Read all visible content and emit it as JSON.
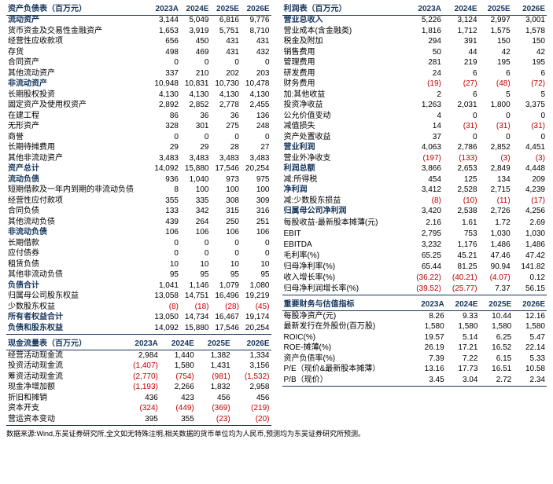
{
  "years": [
    "2023A",
    "2024E",
    "2025E",
    "2026E"
  ],
  "footnote": "数据来源:Wind,东吴证券研究所,全文如无特殊注明,相关数据的货币单位均为人民币,预测均为东吴证券研究所预测。",
  "left": {
    "header": "资产负债表（百万元）",
    "rows": [
      {
        "s": 1,
        "l": "流动资产",
        "v": [
          "3,144",
          "5,049",
          "6,816",
          "9,776"
        ]
      },
      {
        "l": "货币资金及交易性金融资产",
        "v": [
          "1,653",
          "3,919",
          "5,751",
          "8,710"
        ]
      },
      {
        "l": "经营性应收款项",
        "v": [
          "656",
          "450",
          "431",
          "431"
        ]
      },
      {
        "l": "存货",
        "v": [
          "498",
          "469",
          "431",
          "432"
        ]
      },
      {
        "l": "合同资产",
        "v": [
          "0",
          "0",
          "0",
          "0"
        ]
      },
      {
        "l": "其他流动资产",
        "v": [
          "337",
          "210",
          "202",
          "203"
        ]
      },
      {
        "s": 1,
        "l": "非流动资产",
        "v": [
          "10,948",
          "10,831",
          "10,730",
          "10,478"
        ]
      },
      {
        "l": "长期股权投资",
        "v": [
          "4,130",
          "4,130",
          "4,130",
          "4,130"
        ]
      },
      {
        "l": "固定资产及使用权资产",
        "v": [
          "2,892",
          "2,852",
          "2,778",
          "2,455"
        ]
      },
      {
        "l": "在建工程",
        "v": [
          "86",
          "36",
          "36",
          "136"
        ]
      },
      {
        "l": "无形资产",
        "v": [
          "328",
          "301",
          "275",
          "248"
        ]
      },
      {
        "l": "商誉",
        "v": [
          "0",
          "0",
          "0",
          "0"
        ]
      },
      {
        "l": "长期待摊费用",
        "v": [
          "29",
          "29",
          "28",
          "27"
        ]
      },
      {
        "l": "其他非流动资产",
        "v": [
          "3,483",
          "3,483",
          "3,483",
          "3,483"
        ]
      },
      {
        "s": 1,
        "l": "资产总计",
        "v": [
          "14,092",
          "15,880",
          "17,546",
          "20,254"
        ]
      },
      {
        "s": 1,
        "l": "流动负债",
        "v": [
          "936",
          "1,040",
          "973",
          "975"
        ]
      },
      {
        "l": "短期借款及一年内到期的非流动负债",
        "v": [
          "8",
          "100",
          "100",
          "100"
        ]
      },
      {
        "l": "经营性应付款项",
        "v": [
          "355",
          "335",
          "308",
          "309"
        ]
      },
      {
        "l": "合同负债",
        "v": [
          "133",
          "342",
          "315",
          "316"
        ]
      },
      {
        "l": "其他流动负债",
        "v": [
          "439",
          "264",
          "250",
          "251"
        ]
      },
      {
        "s": 1,
        "l": "非流动负债",
        "v": [
          "106",
          "106",
          "106",
          "106"
        ]
      },
      {
        "l": "长期借款",
        "v": [
          "0",
          "0",
          "0",
          "0"
        ]
      },
      {
        "l": "应付债券",
        "v": [
          "0",
          "0",
          "0",
          "0"
        ]
      },
      {
        "l": "租赁负债",
        "v": [
          "10",
          "10",
          "10",
          "10"
        ]
      },
      {
        "l": "其他非流动负债",
        "v": [
          "95",
          "95",
          "95",
          "95"
        ]
      },
      {
        "s": 1,
        "l": "负债合计",
        "v": [
          "1,041",
          "1,146",
          "1,079",
          "1,080"
        ]
      },
      {
        "l": "归属母公司股东权益",
        "v": [
          "13,058",
          "14,751",
          "16,496",
          "19,219"
        ]
      },
      {
        "l": "少数股东权益",
        "v": [
          "(8)",
          "(18)",
          "(28)",
          "(45)"
        ]
      },
      {
        "s": 1,
        "l": "所有者权益合计",
        "v": [
          "13,050",
          "14,734",
          "16,467",
          "19,174"
        ]
      },
      {
        "s": 1,
        "l": "负债和股东权益",
        "v": [
          "14,092",
          "15,880",
          "17,546",
          "20,254"
        ],
        "bot": 1
      }
    ],
    "header2": "现金流量表（百万元）",
    "rows2": [
      {
        "l": "经营活动现金流",
        "v": [
          "2,984",
          "1,440",
          "1,382",
          "1,334"
        ]
      },
      {
        "l": "投资活动现金流",
        "v": [
          "(1,407)",
          "1,580",
          "1,431",
          "3,156"
        ]
      },
      {
        "l": "筹资活动现金流",
        "v": [
          "(2,770)",
          "(754)",
          "(981)",
          "(1,532)"
        ]
      },
      {
        "l": "现金净增加额",
        "v": [
          "(1,193)",
          "2,266",
          "1,832",
          "2,958"
        ]
      },
      {
        "l": "折旧和摊销",
        "v": [
          "436",
          "423",
          "456",
          "456"
        ]
      },
      {
        "l": "资本开支",
        "v": [
          "(324)",
          "(449)",
          "(369)",
          "(219)"
        ]
      },
      {
        "l": "营运资本变动",
        "v": [
          "395",
          "355",
          "(23)",
          "(20)"
        ],
        "bot": 1
      }
    ]
  },
  "right": {
    "header": "利润表（百万元）",
    "rows": [
      {
        "s": 1,
        "l": "营业总收入",
        "v": [
          "5,226",
          "3,124",
          "2,997",
          "3,001"
        ]
      },
      {
        "l": "营业成本(含金融类)",
        "v": [
          "1,816",
          "1,712",
          "1,575",
          "1,578"
        ]
      },
      {
        "l": "税金及附加",
        "v": [
          "294",
          "391",
          "150",
          "150"
        ]
      },
      {
        "l": "销售费用",
        "v": [
          "50",
          "44",
          "42",
          "42"
        ]
      },
      {
        "l": "管理费用",
        "v": [
          "281",
          "219",
          "195",
          "195"
        ]
      },
      {
        "l": "研发费用",
        "v": [
          "24",
          "6",
          "6",
          "6"
        ]
      },
      {
        "l": "财务费用",
        "v": [
          "(19)",
          "(27)",
          "(48)",
          "(72)"
        ]
      },
      {
        "l": "加:其他收益",
        "v": [
          "2",
          "6",
          "5",
          "5"
        ]
      },
      {
        "l": "投资净收益",
        "v": [
          "1,263",
          "2,031",
          "1,800",
          "3,375"
        ]
      },
      {
        "l": "公允价值变动",
        "v": [
          "4",
          "0",
          "0",
          "0"
        ]
      },
      {
        "l": "减值损失",
        "v": [
          "14",
          "(31)",
          "(31)",
          "(31)"
        ]
      },
      {
        "l": "资产处置收益",
        "v": [
          "37",
          "0",
          "0",
          "0"
        ]
      },
      {
        "s": 1,
        "l": "营业利润",
        "v": [
          "4,063",
          "2,786",
          "2,852",
          "4,451"
        ]
      },
      {
        "l": "营业外净收支",
        "v": [
          "(197)",
          "(133)",
          "(3)",
          "(3)"
        ]
      },
      {
        "s": 1,
        "l": "利润总额",
        "v": [
          "3,866",
          "2,653",
          "2,849",
          "4,448"
        ]
      },
      {
        "l": "减:所得税",
        "v": [
          "454",
          "125",
          "134",
          "209"
        ]
      },
      {
        "s": 1,
        "l": "净利润",
        "v": [
          "3,412",
          "2,528",
          "2,715",
          "4,239"
        ]
      },
      {
        "l": "减:少数股东损益",
        "v": [
          "(8)",
          "(10)",
          "(11)",
          "(17)"
        ]
      },
      {
        "s": 1,
        "l": "归属母公司净利润",
        "v": [
          "3,420",
          "2,538",
          "2,726",
          "4,256"
        ]
      },
      {
        "l": "",
        "v": [
          "",
          "",
          "",
          ""
        ]
      },
      {
        "l": "每股收益-最新股本摊薄(元)",
        "v": [
          "2.16",
          "1.61",
          "1.72",
          "2.69"
        ]
      },
      {
        "l": "",
        "v": [
          "",
          "",
          "",
          ""
        ]
      },
      {
        "l": "EBIT",
        "v": [
          "2,795",
          "753",
          "1,030",
          "1,030"
        ]
      },
      {
        "l": "EBITDA",
        "v": [
          "3,232",
          "1,176",
          "1,486",
          "1,486"
        ]
      },
      {
        "l": "",
        "v": [
          "",
          "",
          "",
          ""
        ]
      },
      {
        "l": "毛利率(%)",
        "v": [
          "65.25",
          "45.21",
          "47.46",
          "47.42"
        ]
      },
      {
        "l": "归母净利率(%)",
        "v": [
          "65.44",
          "81.25",
          "90.94",
          "141.82"
        ]
      },
      {
        "l": "",
        "v": [
          "",
          "",
          "",
          ""
        ]
      },
      {
        "l": "收入增长率(%)",
        "v": [
          "(36.22)",
          "(40.21)",
          "(4.07)",
          "0.12"
        ]
      },
      {
        "l": "归母净利润增长率(%)",
        "v": [
          "(39.52)",
          "(25.77)",
          "7.37",
          "56.15"
        ],
        "bot": 1
      }
    ],
    "header2": "重要财务与估值指标",
    "rows2": [
      {
        "l": "每股净资产(元)",
        "v": [
          "8.26",
          "9.33",
          "10.44",
          "12.16"
        ]
      },
      {
        "l": "最新发行在外股份(百万股)",
        "v": [
          "1,580",
          "1,580",
          "1,580",
          "1,580"
        ]
      },
      {
        "l": "ROIC(%)",
        "v": [
          "19.57",
          "5.14",
          "6.25",
          "5.47"
        ]
      },
      {
        "l": "ROE-摊薄(%)",
        "v": [
          "26.19",
          "17.21",
          "16.52",
          "22.14"
        ]
      },
      {
        "l": "资产负债率(%)",
        "v": [
          "7.39",
          "7.22",
          "6.15",
          "5.33"
        ]
      },
      {
        "l": "P/E（现价&最新股本摊薄）",
        "v": [
          "13.16",
          "17.73",
          "16.51",
          "10.58"
        ]
      },
      {
        "l": "P/B（现价）",
        "v": [
          "3.45",
          "3.04",
          "2.72",
          "2.34"
        ],
        "bot": 1
      }
    ]
  }
}
